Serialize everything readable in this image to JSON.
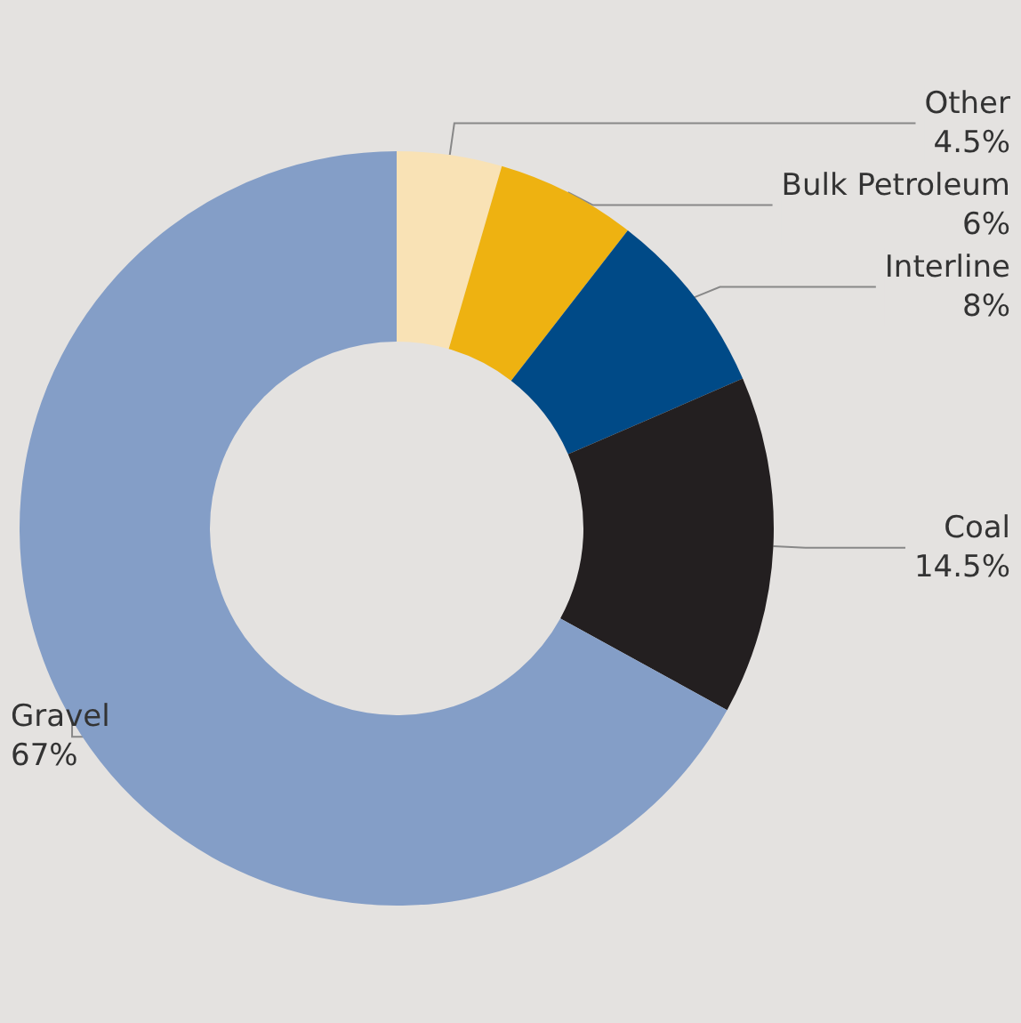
{
  "chart_data": {
    "type": "donut",
    "categories": [
      "Other",
      "Bulk Petroleum",
      "Interline",
      "Coal",
      "Gravel"
    ],
    "values": [
      4.5,
      6,
      8,
      14.5,
      67
    ],
    "value_labels": [
      "4.5%",
      "6%",
      "8%",
      "14.5%",
      "67%"
    ],
    "colors": [
      "#f9e2b5",
      "#eeb211",
      "#004a87",
      "#231f20",
      "#849ec7"
    ],
    "legend": false
  }
}
